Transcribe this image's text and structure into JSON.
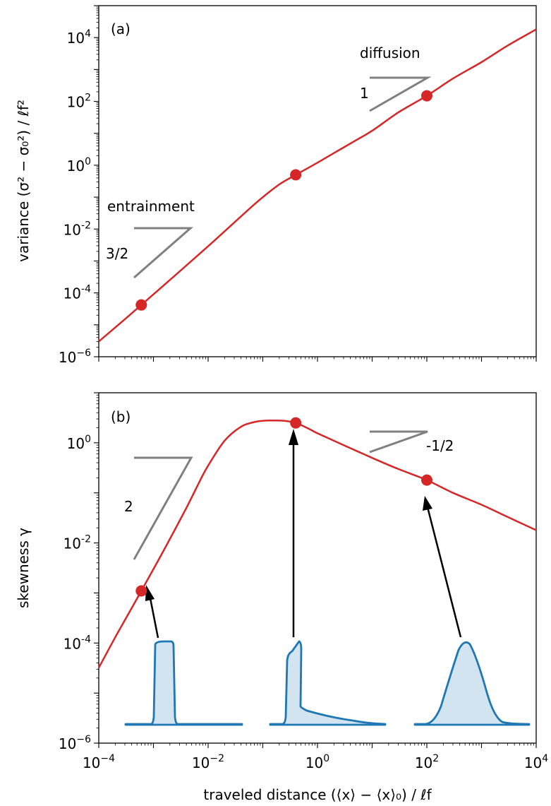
{
  "chart_data": [
    {
      "type": "line",
      "panel_label": "(a)",
      "xscale": "log",
      "yscale": "log",
      "xlim": [
        0.0001,
        10000
      ],
      "ylim": [
        1e-06,
        100000.0
      ],
      "xlabel": "",
      "ylabel_main": "variance ",
      "ylabel_math": "(σ² − σ₀²) / ℓf²",
      "yticks": [
        {
          "v": 10000.0,
          "base": "10",
          "exp": "4"
        },
        {
          "v": 100.0,
          "base": "10",
          "exp": "2"
        },
        {
          "v": 1.0,
          "base": "10",
          "exp": "0"
        },
        {
          "v": 0.01,
          "base": "10",
          "exp": "-2"
        },
        {
          "v": 0.0001,
          "base": "10",
          "exp": "-4"
        },
        {
          "v": 1e-06,
          "base": "10",
          "exp": "−6"
        }
      ],
      "series": [
        {
          "x": [
            0.0001,
            0.0003,
            0.0006,
            0.001,
            0.003,
            0.01,
            0.03,
            0.06,
            0.1,
            0.2,
            0.4,
            0.7,
            1,
            2,
            5,
            10,
            30,
            100,
            300,
            1000,
            3000,
            10000
          ],
          "y": [
            3e-06,
            1.5e-05,
            4.2e-05,
            9e-05,
            0.00047,
            0.0029,
            0.016,
            0.047,
            0.1,
            0.25,
            0.5,
            0.85,
            1.2,
            2.4,
            6,
            12,
            45,
            150,
            520,
            1700,
            5600,
            18000
          ]
        }
      ],
      "markers": {
        "x": [
          0.0006,
          0.4,
          100
        ],
        "y": [
          4.2e-05,
          0.5,
          150
        ]
      },
      "annotations": [
        {
          "text": "entrainment"
        },
        {
          "text": "3/2"
        },
        {
          "text": "diffusion"
        },
        {
          "text": "1"
        }
      ]
    },
    {
      "type": "line",
      "panel_label": "(b)",
      "xscale": "log",
      "yscale": "log",
      "xlim": [
        0.0001,
        10000
      ],
      "ylim": [
        1e-06,
        10
      ],
      "xlabel": "traveled distance (⟨x⟩ − ⟨x⟩₀) / ℓf",
      "ylabel": "skewness γ",
      "xticks": [
        {
          "v": 0.0001,
          "base": "10",
          "exp": "−4"
        },
        {
          "v": 0.01,
          "base": "10",
          "exp": "−2"
        },
        {
          "v": 1,
          "base": "10",
          "exp": "0"
        },
        {
          "v": 100,
          "base": "10",
          "exp": "2"
        },
        {
          "v": 10000,
          "base": "10",
          "exp": "4"
        }
      ],
      "yticks": [
        {
          "v": 1,
          "base": "10",
          "exp": "0"
        },
        {
          "v": 0.01,
          "base": "10",
          "exp": "-2"
        },
        {
          "v": 0.0001,
          "base": "10",
          "exp": "-4"
        },
        {
          "v": 1e-06,
          "base": "10",
          "exp": "−6"
        }
      ],
      "series": [
        {
          "x": [
            0.0001,
            0.0002,
            0.0004,
            0.0006,
            0.001,
            0.002,
            0.004,
            0.007,
            0.01,
            0.02,
            0.04,
            0.07,
            0.1,
            0.15,
            0.25,
            0.4,
            0.7,
            1,
            3,
            10,
            30,
            100,
            300,
            1000,
            3000,
            10000
          ],
          "y": [
            3.2e-05,
            0.00013,
            0.0005,
            0.0011,
            0.003,
            0.012,
            0.05,
            0.17,
            0.35,
            1.1,
            2.1,
            2.6,
            2.75,
            2.8,
            2.75,
            2.5,
            1.9,
            1.55,
            0.9,
            0.5,
            0.3,
            0.18,
            0.1,
            0.058,
            0.033,
            0.018
          ]
        }
      ],
      "markers": {
        "x": [
          0.0006,
          0.4,
          100
        ],
        "y": [
          0.0011,
          2.5,
          0.18
        ]
      },
      "annotations": [
        {
          "text": "2"
        },
        {
          "text": "-1/2"
        }
      ]
    }
  ]
}
